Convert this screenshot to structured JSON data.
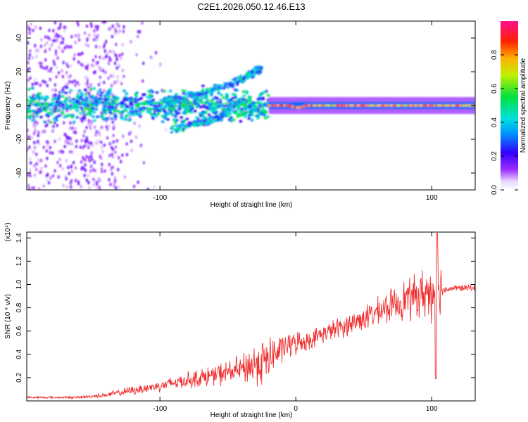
{
  "title": "C2E1.2026.050.12.46.E13",
  "colors": {
    "snr_line": "#f03030",
    "background": "#ffffff",
    "axis": "#000000"
  },
  "chart_data": [
    {
      "type": "heatmap",
      "name": "spectrogram",
      "xlabel": "Height of straight line (km)",
      "ylabel": "Frequency (Hz)",
      "xlim": [
        -198,
        132
      ],
      "ylim": [
        -50,
        50
      ],
      "xticks": [
        -100,
        0,
        100
      ],
      "xtick_labels": [
        "-100",
        "",
        "100"
      ],
      "yticks": [
        -40,
        -20,
        0,
        20,
        40
      ],
      "ytick_labels": [
        "-40",
        "-20",
        "0",
        "20",
        "40"
      ],
      "colorbar": {
        "label": "Normalized spectral amplitude",
        "range": [
          0,
          1
        ],
        "ticks": [
          0,
          0.2,
          0.4,
          0.6,
          0.8
        ],
        "tick_labels": [
          "0.0",
          "0.2",
          "0.4",
          "0.6",
          "0.8"
        ]
      },
      "features": [
        {
          "name": "broadband noise",
          "x_range": [
            -198,
            -130
          ],
          "freq_range": [
            -50,
            50
          ],
          "amplitude": 0.12
        },
        {
          "name": "main band",
          "x_range": [
            -198,
            -20
          ],
          "freq_center": 0,
          "freq_halfwidth": 6,
          "amplitude": 0.35
        },
        {
          "name": "upper rising branch",
          "points": [
            [
              -95,
              2
            ],
            [
              -70,
              7
            ],
            [
              -50,
              12
            ],
            [
              -35,
              18
            ],
            [
              -25,
              22
            ]
          ],
          "amplitude": 0.3
        },
        {
          "name": "lower rising branch",
          "points": [
            [
              -92,
              -14
            ],
            [
              -70,
              -10
            ],
            [
              -55,
              -7
            ],
            [
              -45,
              1
            ]
          ],
          "amplitude": 0.3
        },
        {
          "name": "stable tone",
          "x_range": [
            -20,
            132
          ],
          "freq_center": 0,
          "amplitude": 0.85
        }
      ]
    },
    {
      "type": "line",
      "name": "snr",
      "xlabel": "Height of straight line (km)",
      "ylabel": "SNR (10 * v/v)",
      "multiplier_label": "(x10⁴)",
      "xlim": [
        -198,
        132
      ],
      "ylim": [
        0,
        1.45
      ],
      "xticks": [
        -100,
        0,
        100
      ],
      "xtick_labels": [
        "-100",
        "0",
        "100"
      ],
      "yticks": [
        0.2,
        0.4,
        0.6,
        0.8,
        1.0,
        1.2,
        1.4
      ],
      "ytick_labels": [
        "0.2",
        "0.4",
        "0.6",
        "0.8",
        "1.0",
        "1.2",
        "1.4"
      ],
      "series": [
        {
          "name": "SNR envelope (mean)",
          "x": [
            -198,
            -160,
            -140,
            -120,
            -100,
            -80,
            -60,
            -40,
            -30,
            -20,
            -10,
            0,
            10,
            20,
            30,
            40,
            50,
            60,
            70,
            80,
            90,
            100,
            103,
            110,
            120,
            132
          ],
          "y": [
            0.03,
            0.03,
            0.05,
            0.09,
            0.13,
            0.18,
            0.22,
            0.27,
            0.32,
            0.36,
            0.45,
            0.5,
            0.52,
            0.58,
            0.62,
            0.66,
            0.71,
            0.76,
            0.82,
            0.87,
            0.9,
            0.95,
            0.97,
            0.96,
            0.97,
            0.97
          ]
        },
        {
          "name": "SNR spread (+/-)",
          "x": [
            -198,
            -160,
            -140,
            -120,
            -100,
            -80,
            -60,
            -40,
            -30,
            -20,
            -10,
            0,
            10,
            20,
            30,
            40,
            50,
            60,
            70,
            80,
            90,
            100,
            103,
            110,
            120,
            132
          ],
          "y": [
            0.01,
            0.01,
            0.02,
            0.04,
            0.05,
            0.07,
            0.09,
            0.12,
            0.2,
            0.2,
            0.12,
            0.1,
            0.08,
            0.08,
            0.09,
            0.1,
            0.11,
            0.12,
            0.14,
            0.17,
            0.2,
            0.25,
            0.45,
            0.03,
            0.03,
            0.03
          ]
        }
      ]
    }
  ]
}
